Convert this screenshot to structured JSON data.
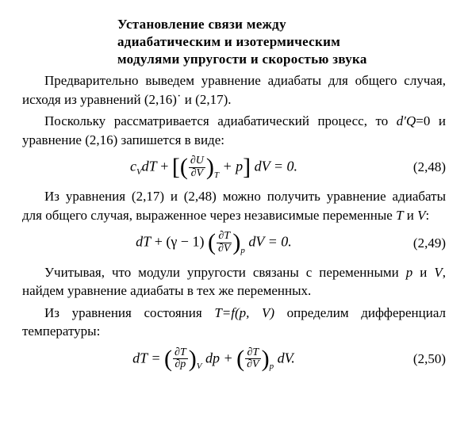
{
  "heading": {
    "l1": "Установление связи между",
    "l2": "адиабатическим и изотермическим",
    "l3": "модулями упругости и скоростью звука"
  },
  "p1": "Предварительно выведем уравнение ади­абаты для общего случая, исходя из уравнений (2,16)˙ и (2,17).",
  "p2_a": "Поскольку рассматривается адиабатический процесс, то ",
  "p2_b": "d′Q",
  "p2_c": "=0 и уравнение  (2,16) запишется в виде:",
  "eq1": {
    "cv": "c",
    "cvsub": "V",
    "dT": "dT",
    "plus": " + ",
    "lbr": "[",
    "lpar": "(",
    "frac_num": "∂U",
    "frac_den": "∂V",
    "rpar": ")",
    "parsub": "T",
    "plusp": " + p",
    "rbr": "]",
    "dV": " dV = 0.",
    "num": "(2,48)"
  },
  "p3_a": "Из уравнения (2,17) и (2,48) можно получить урав­нение адиабаты для общего случая, выраженное через независимые переменные ",
  "p3_b": "T",
  "p3_c": " и ",
  "p3_d": "V",
  "p3_e": ":",
  "eq2": {
    "dT": "dT",
    "plus": " + (γ − 1) ",
    "lpar": "(",
    "frac_num": "∂T",
    "frac_den": "∂V",
    "rpar": ")",
    "parsub": "p",
    "dV": " dV = 0.",
    "num": "(2,49)"
  },
  "p4_a": "Учитывая, что модули упругости связаны с перемен­ными ",
  "p4_b": "p",
  "p4_c": " и ",
  "p4_d": "V",
  "p4_e": ", найдем уравнение адиабаты в тех же пере­менных.",
  "p5_a": "Из уравнения состояния ",
  "p5_b": "T=f(p, V)",
  "p5_c": " определим диф­ференциал температуры:",
  "eq3": {
    "dT": "dT = ",
    "lpar1": "(",
    "f1_num": "∂T",
    "f1_den": "∂p",
    "rpar1": ")",
    "sub1": "V",
    "dp": " dp + ",
    "lpar2": "(",
    "f2_num": "∂T",
    "f2_den": "∂V",
    "rpar2": ")",
    "sub2": "p",
    "dV": " dV.",
    "num": "(2,50)"
  }
}
